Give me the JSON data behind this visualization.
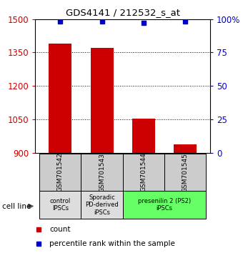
{
  "title": "GDS4141 / 212532_s_at",
  "samples": [
    "GSM701542",
    "GSM701543",
    "GSM701544",
    "GSM701545"
  ],
  "counts": [
    1390,
    1370,
    1055,
    940
  ],
  "percentiles": [
    98,
    98,
    97,
    98
  ],
  "ylim_left": [
    900,
    1500
  ],
  "ylim_right": [
    0,
    100
  ],
  "yticks_left": [
    900,
    1050,
    1200,
    1350,
    1500
  ],
  "yticks_right": [
    0,
    25,
    50,
    75,
    100
  ],
  "ytick_labels_right": [
    "0",
    "25",
    "50",
    "75",
    "100%"
  ],
  "bar_color": "#cc0000",
  "dot_color": "#0000cc",
  "bar_width": 0.55,
  "groups": [
    {
      "label": "control\nIPSCs",
      "bars": [
        0
      ],
      "color": "#dddddd"
    },
    {
      "label": "Sporadic\nPD-derived\niPSCs",
      "bars": [
        1
      ],
      "color": "#dddddd"
    },
    {
      "label": "presenilin 2 (PS2)\niPSCs",
      "bars": [
        2,
        3
      ],
      "color": "#66ff66"
    }
  ],
  "cell_line_label": "cell line",
  "legend_count_label": "count",
  "legend_pct_label": "percentile rank within the sample",
  "sample_box_color": "#cccccc",
  "left_label_color": "#cc0000",
  "right_label_color": "#0000cc"
}
